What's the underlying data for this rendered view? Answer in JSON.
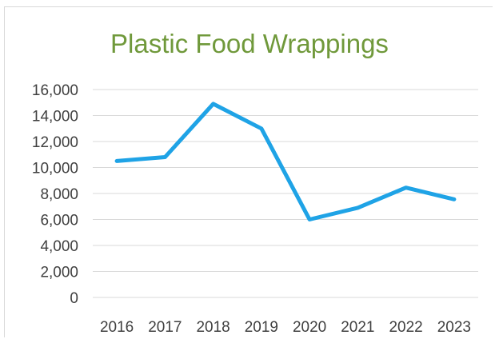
{
  "chart_data": {
    "type": "line",
    "title": "Plastic Food Wrappings",
    "xlabel": "",
    "ylabel": "",
    "categories": [
      "2016",
      "2017",
      "2018",
      "2019",
      "2020",
      "2021",
      "2022",
      "2023"
    ],
    "series": [
      {
        "values": [
          10500,
          10800,
          14900,
          13000,
          6000,
          6900,
          8450,
          7550
        ],
        "color": "#1fa3e6"
      }
    ],
    "ylim": [
      0,
      16000
    ],
    "yticks": [
      "0",
      "2,000",
      "4,000",
      "6,000",
      "8,000",
      "10,000",
      "12,000",
      "14,000",
      "16,000"
    ],
    "grid": true,
    "legend": "none"
  }
}
